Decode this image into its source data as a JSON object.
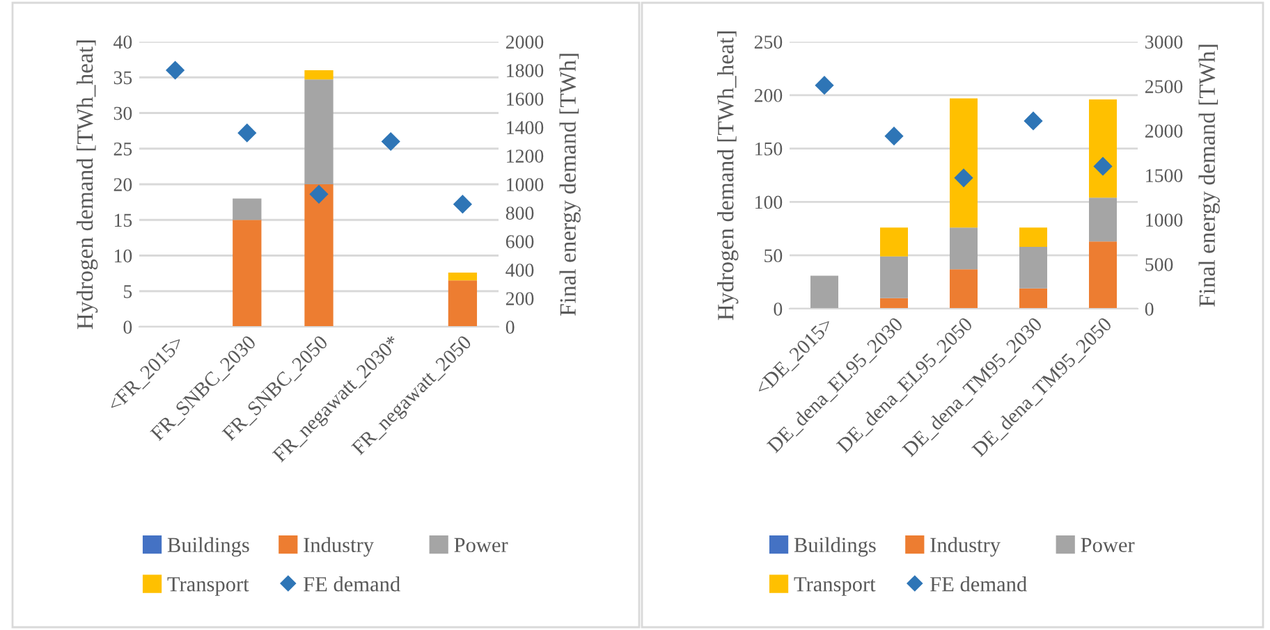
{
  "chart_data": [
    {
      "type": "bar",
      "stacked": true,
      "categories": [
        "<FR_2015>",
        "FR_SNBC_2030",
        "FR_SNBC_2050",
        "FR_negawatt_2030*",
        "FR_negawatt_2050"
      ],
      "series": [
        {
          "name": "Buildings",
          "color": "#4472c4",
          "values": [
            null,
            null,
            null,
            null,
            null
          ]
        },
        {
          "name": "Industry",
          "color": "#ed7d31",
          "values": [
            null,
            15,
            20,
            null,
            6.5
          ]
        },
        {
          "name": "Power",
          "color": "#a5a5a5",
          "values": [
            null,
            3,
            14.7,
            null,
            null
          ]
        },
        {
          "name": "Transport",
          "color": "#ffc000",
          "values": [
            null,
            null,
            1.3,
            null,
            1.1
          ]
        },
        {
          "name": "FE demand",
          "color": "#2e75b6",
          "type": "scatter",
          "axis": "y2",
          "marker": "diamond",
          "values": [
            1800,
            1360,
            930,
            1300,
            860
          ]
        }
      ],
      "ylabel": "Hydrogen demand [TWh_heat]",
      "y2label": "Final energy demand [TWh]",
      "ylim": [
        0,
        40
      ],
      "yticks": [
        0,
        5,
        10,
        15,
        20,
        25,
        30,
        35,
        40
      ],
      "y2lim": [
        0,
        2000
      ],
      "y2ticks": [
        0,
        200,
        400,
        600,
        800,
        1000,
        1200,
        1400,
        1600,
        1800,
        2000
      ],
      "grid": "y",
      "legend": "bottom"
    },
    {
      "type": "bar",
      "stacked": true,
      "categories": [
        "<DE_2015>",
        "DE_dena_EL95_2030",
        "DE_dena_EL95_2050",
        "DE_dena_TM95_2030",
        "DE_dena_TM95_2050"
      ],
      "series": [
        {
          "name": "Buildings",
          "color": "#4472c4",
          "values": [
            null,
            null,
            null,
            null,
            null
          ]
        },
        {
          "name": "Industry",
          "color": "#ed7d31",
          "values": [
            null,
            10,
            37,
            19,
            63
          ]
        },
        {
          "name": "Power",
          "color": "#a5a5a5",
          "values": [
            31,
            39,
            39,
            39,
            41
          ]
        },
        {
          "name": "Transport",
          "color": "#ffc000",
          "values": [
            null,
            27,
            121,
            18,
            92
          ]
        },
        {
          "name": "FE demand",
          "color": "#2e75b6",
          "type": "scatter",
          "axis": "y2",
          "marker": "diamond",
          "values": [
            2510,
            1940,
            1470,
            2110,
            1600
          ]
        }
      ],
      "ylabel": "Hydrogen demand [TWh_heat]",
      "y2label": "Final energy demand [TWh]",
      "ylim": [
        0,
        250
      ],
      "yticks": [
        0,
        50,
        100,
        150,
        200,
        250
      ],
      "y2lim": [
        0,
        3000
      ],
      "y2ticks": [
        0,
        500,
        1000,
        1500,
        2000,
        2500,
        3000
      ],
      "grid": "y",
      "legend": "bottom"
    }
  ]
}
